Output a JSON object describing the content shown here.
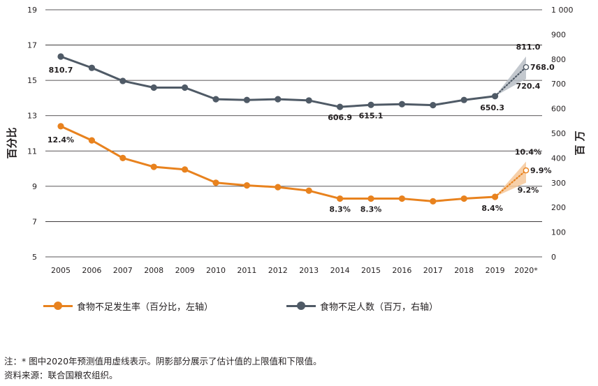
{
  "chart_data": {
    "type": "line",
    "categories": [
      "2005",
      "2006",
      "2007",
      "2008",
      "2009",
      "2010",
      "2011",
      "2012",
      "2013",
      "2014",
      "2015",
      "2016",
      "2017",
      "2018",
      "2019",
      "2020*"
    ],
    "left_axis": {
      "label": "百分比",
      "ylim": [
        5,
        19
      ],
      "ticks": [
        5,
        7,
        9,
        11,
        13,
        15,
        17,
        19
      ]
    },
    "right_axis": {
      "label": "百 万",
      "ylim": [
        0,
        1000
      ],
      "ticks": [
        0,
        100,
        200,
        300,
        400,
        500,
        600,
        700,
        800,
        900,
        1000
      ],
      "tick_labels": [
        "0",
        "100",
        "200",
        "300",
        "400",
        "500",
        "600",
        "700",
        "800",
        "900",
        "1 000"
      ]
    },
    "grid": true,
    "legend_position": "bottom",
    "series": [
      {
        "name": "食物不足发生率（百分比，左轴）",
        "axis": "left",
        "color": "#e8821e",
        "values": [
          12.4,
          11.6,
          10.6,
          10.1,
          9.95,
          9.2,
          9.05,
          8.95,
          8.75,
          8.3,
          8.3,
          8.3,
          8.15,
          8.3,
          8.4,
          9.9
        ],
        "projection": {
          "category": "2020*",
          "value": 9.9,
          "upper": 10.4,
          "lower": 9.2
        },
        "labels": [
          {
            "category": "2005",
            "value": 12.4,
            "text": "12.4%"
          },
          {
            "category": "2014",
            "value": 8.3,
            "text": "8.3%"
          },
          {
            "category": "2015",
            "value": 8.3,
            "text": "8.3%"
          },
          {
            "category": "2019",
            "value": 8.4,
            "text": "8.4%"
          },
          {
            "category": "2020*",
            "value": 10.4,
            "text": "10.4%"
          },
          {
            "category": "2020*",
            "value": 9.9,
            "text": "9.9%"
          },
          {
            "category": "2020*",
            "value": 9.2,
            "text": "9.2%"
          }
        ]
      },
      {
        "name": "食物不足人数（百万，右轴）",
        "axis": "right",
        "color": "#4f5a66",
        "values": [
          810.7,
          765,
          712,
          685,
          685,
          638,
          635,
          638,
          633,
          606.9,
          615.1,
          618,
          614,
          635,
          650.3,
          768.0
        ],
        "projection": {
          "category": "2020*",
          "value": 768.0,
          "upper": 811.0,
          "lower": 720.4
        },
        "labels": [
          {
            "category": "2005",
            "value": 810.7,
            "text": "810.7"
          },
          {
            "category": "2014",
            "value": 606.9,
            "text": "606.9"
          },
          {
            "category": "2015",
            "value": 615.1,
            "text": "615.1"
          },
          {
            "category": "2019",
            "value": 650.3,
            "text": "650.3"
          },
          {
            "category": "2020*",
            "value": 811.0,
            "text": "811.0"
          },
          {
            "category": "2020*",
            "value": 768.0,
            "text": "768.0"
          },
          {
            "category": "2020*",
            "value": 720.4,
            "text": "720.4"
          }
        ]
      }
    ]
  },
  "notes": {
    "note": "注：* 图中2020年预测值用虚线表示。阴影部分展示了估计值的上限值和下限值。",
    "source": "资料来源：联合国粮农组织。"
  }
}
